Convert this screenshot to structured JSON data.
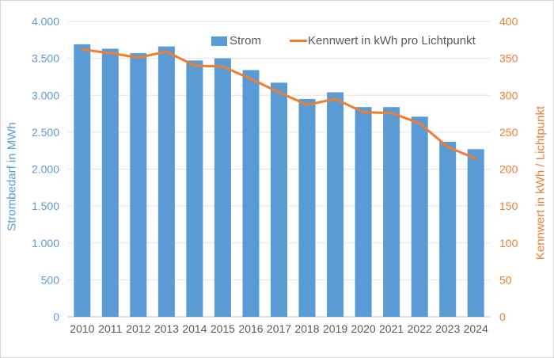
{
  "chart_data": {
    "type": "bar+line",
    "categories": [
      "2010",
      "2011",
      "2012",
      "2013",
      "2014",
      "2015",
      "2016",
      "2017",
      "2018",
      "2019",
      "2020",
      "2021",
      "2022",
      "2023",
      "2024"
    ],
    "series": [
      {
        "name": "Strom",
        "type": "bar",
        "axis": "left",
        "color": "#5B9BD5",
        "values": [
          3690,
          3630,
          3570,
          3660,
          3470,
          3500,
          3340,
          3170,
          2950,
          3040,
          2840,
          2840,
          2710,
          2370,
          2270
        ]
      },
      {
        "name": "Kennwert in kWh pro Lichtpunkt",
        "type": "line",
        "axis": "right",
        "color": "#ED7D31",
        "values": [
          362,
          357,
          351,
          359,
          340,
          339,
          322,
          304,
          287,
          295,
          277,
          276,
          262,
          230,
          214
        ]
      }
    ],
    "left_axis": {
      "title": "Strombedarf in MWh",
      "color": "#5B9BD5",
      "min": 0,
      "max": 4000,
      "step": 500,
      "tick_labels": [
        "0",
        "500",
        "1.000",
        "1.500",
        "2.000",
        "2.500",
        "3.000",
        "3.500",
        "4.000"
      ]
    },
    "right_axis": {
      "title": "Kennwert in kWh / Lichtpunkt",
      "color": "#ED7D31",
      "min": 0,
      "max": 400,
      "step": 50,
      "tick_labels": [
        "0",
        "50",
        "100",
        "150",
        "200",
        "250",
        "300",
        "350",
        "400"
      ]
    },
    "x_axis": {
      "label_color": "#595959"
    },
    "grid": {
      "show": true,
      "color": "#E3E3E3",
      "baseline_color": "#BFBFBF"
    },
    "legend_position": "top"
  }
}
